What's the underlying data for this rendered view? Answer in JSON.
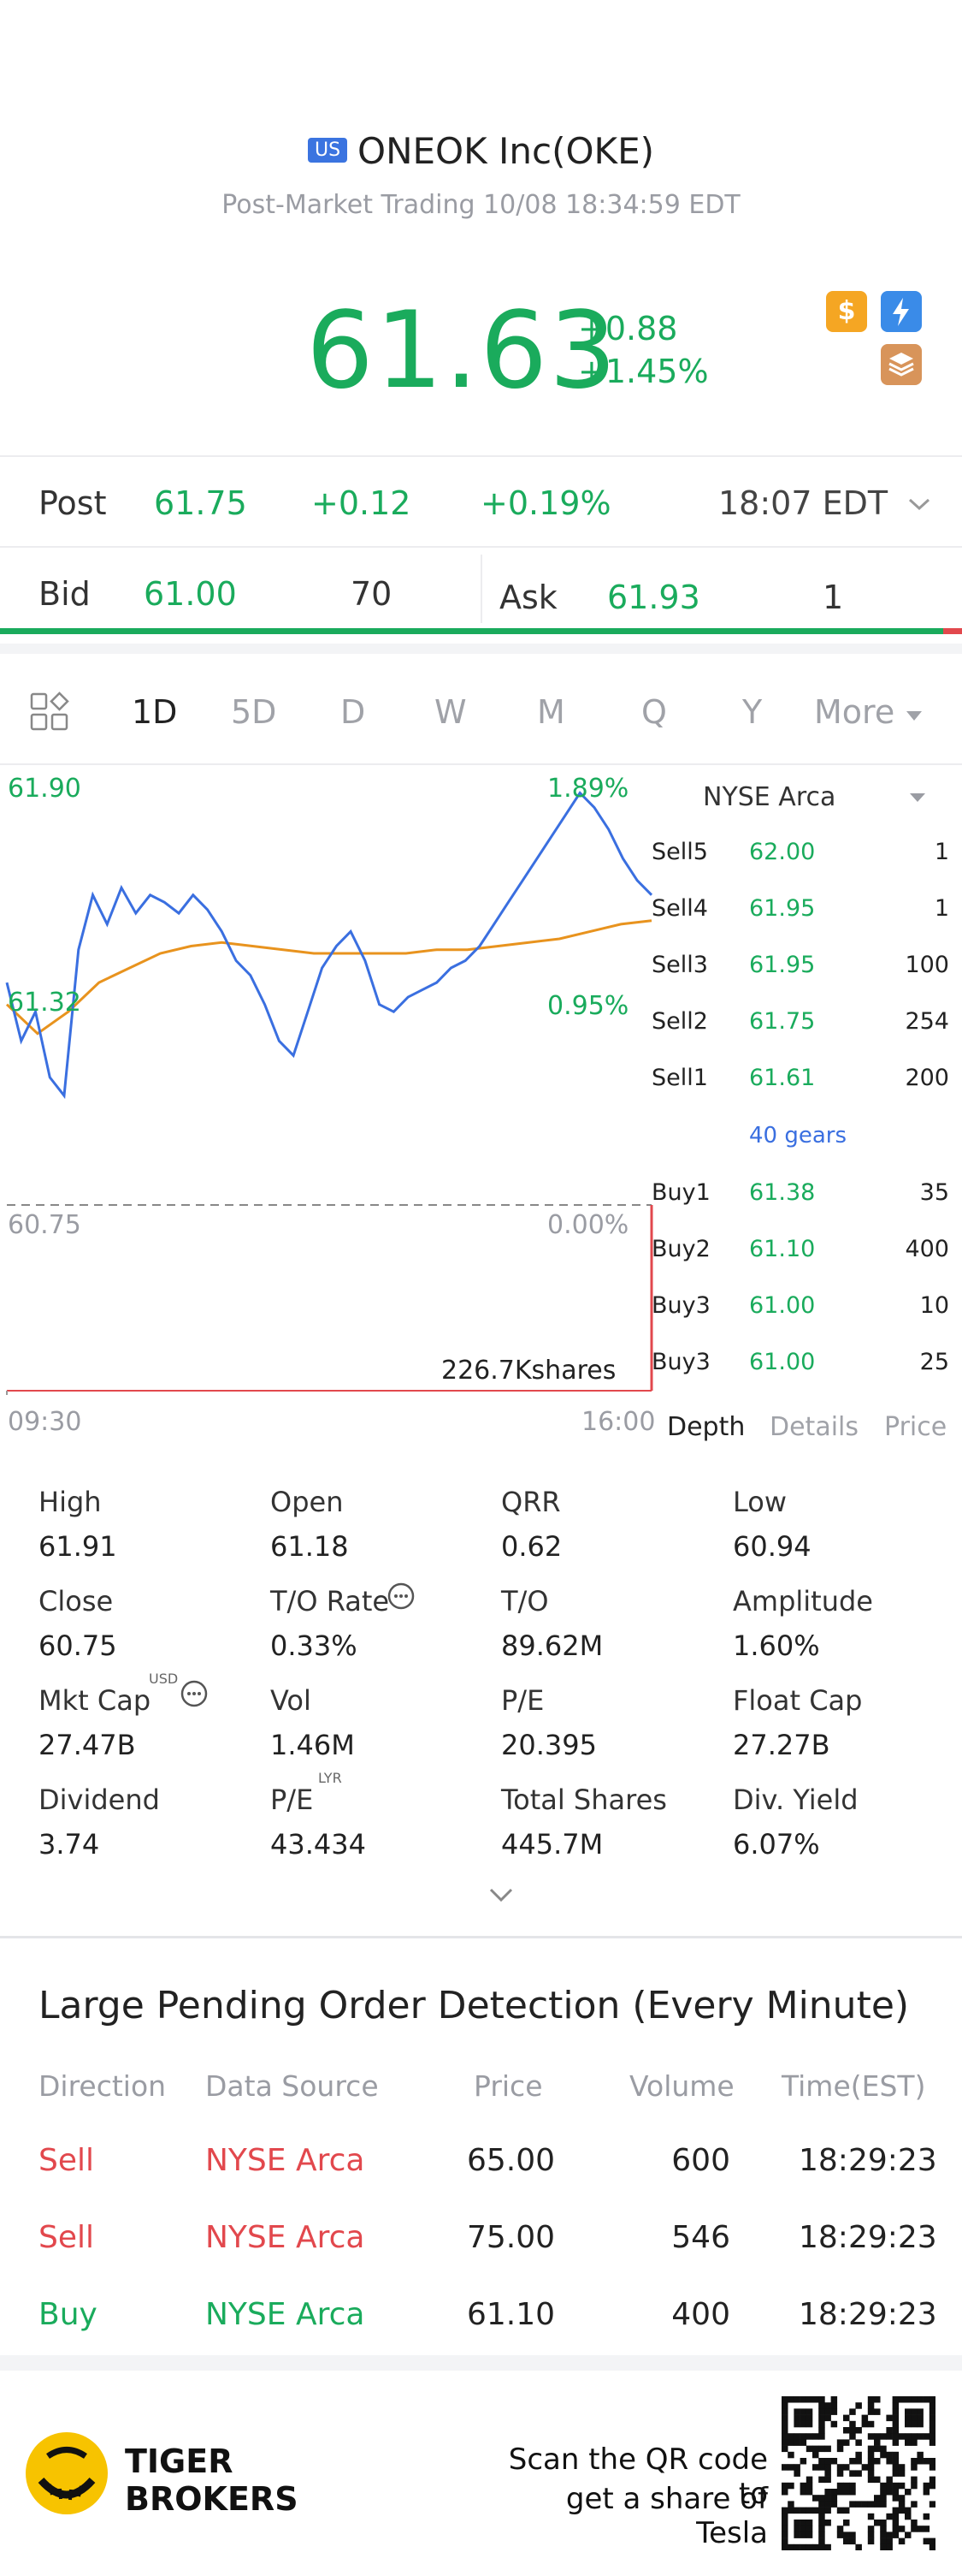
{
  "header": {
    "market_badge": "US",
    "title": "ONEOK Inc(OKE)",
    "subtitle": "Post-Market Trading 10/08 18:34:59 EDT",
    "price": "61.63",
    "change_abs": "+0.88",
    "change_pct": "+1.45%",
    "icons": [
      "dollar-icon",
      "lightning-icon",
      "stack-icon"
    ]
  },
  "post": {
    "label": "Post",
    "price": "61.75",
    "change_abs": "+0.12",
    "change_pct": "+0.19%",
    "time": "18:07 EDT"
  },
  "quote": {
    "bid_label": "Bid",
    "bid_price": "61.00",
    "bid_size": "70",
    "ask_label": "Ask",
    "ask_price": "61.93",
    "ask_size": "1",
    "bid_share": 0.98
  },
  "tabs": [
    "1D",
    "5D",
    "D",
    "W",
    "M",
    "Q",
    "Y",
    "More"
  ],
  "active_tab": "1D",
  "chart": {
    "y_high": "61.90",
    "y_mid": "61.32",
    "y_low": "60.75",
    "pct_high": "1.89%",
    "pct_mid": "0.95%",
    "pct_low": "0.00%",
    "volume": "226.7Kshares",
    "x_start": "09:30",
    "x_end": "16:00"
  },
  "chart_data": {
    "type": "line",
    "x_range": [
      "09:30",
      "16:00"
    ],
    "ylim": [
      60.75,
      61.9
    ],
    "series": [
      {
        "values": [
          61.36,
          61.2,
          61.28,
          61.1,
          61.05,
          61.45,
          61.6,
          61.52,
          61.62,
          61.55,
          61.6,
          61.58,
          61.55,
          61.6,
          61.56,
          61.5,
          61.42,
          61.38,
          61.3,
          61.2,
          61.16,
          61.28,
          61.4,
          61.46,
          61.5,
          61.42,
          61.3,
          61.28,
          61.32,
          61.34,
          61.36,
          61.4,
          61.42,
          61.46,
          61.52,
          61.58,
          61.64,
          61.7,
          61.76,
          61.82,
          61.88,
          61.84,
          61.78,
          61.7,
          61.64,
          61.6
        ]
      },
      {
        "values": [
          61.3,
          61.22,
          61.28,
          61.36,
          61.4,
          61.44,
          61.46,
          61.47,
          61.46,
          61.45,
          61.44,
          61.44,
          61.44,
          61.44,
          61.45,
          61.45,
          61.46,
          61.47,
          61.48,
          61.5,
          61.52,
          61.53
        ]
      }
    ]
  },
  "depth": {
    "exchange": "NYSE Arca",
    "sells": [
      {
        "name": "Sell5",
        "price": "62.00",
        "vol": "1"
      },
      {
        "name": "Sell4",
        "price": "61.95",
        "vol": "1"
      },
      {
        "name": "Sell3",
        "price": "61.95",
        "vol": "100"
      },
      {
        "name": "Sell2",
        "price": "61.75",
        "vol": "254"
      },
      {
        "name": "Sell1",
        "price": "61.61",
        "vol": "200"
      }
    ],
    "gears": "40 gears",
    "buys": [
      {
        "name": "Buy1",
        "price": "61.38",
        "vol": "35"
      },
      {
        "name": "Buy2",
        "price": "61.10",
        "vol": "400"
      },
      {
        "name": "Buy3",
        "price": "61.00",
        "vol": "10"
      },
      {
        "name": "Buy3",
        "price": "61.00",
        "vol": "25"
      }
    ],
    "tabs": [
      "Depth",
      "Details",
      "Price"
    ]
  },
  "stats": [
    {
      "label": "High",
      "value": "61.91"
    },
    {
      "label": "Open",
      "value": "61.18"
    },
    {
      "label": "QRR",
      "value": "0.62"
    },
    {
      "label": "Low",
      "value": "60.94"
    },
    {
      "label": "Close",
      "value": "60.75"
    },
    {
      "label": "T/O Rate",
      "value": "0.33%"
    },
    {
      "label": "T/O",
      "value": "89.62M"
    },
    {
      "label": "Amplitude",
      "value": "1.60%"
    },
    {
      "label": "Mkt Cap",
      "value": "27.47B"
    },
    {
      "label": "Vol",
      "value": "1.46M"
    },
    {
      "label": "P/E",
      "value": "20.395"
    },
    {
      "label": "Float Cap",
      "value": "27.27B"
    },
    {
      "label": "Dividend",
      "value": "3.74"
    },
    {
      "label": "P/E",
      "value": "43.434"
    },
    {
      "label": "Total Shares",
      "value": "445.7M"
    },
    {
      "label": "Div. Yield",
      "value": "6.07%"
    }
  ],
  "stat_superscripts": {
    "usd": "USD",
    "lyr": "LYR"
  },
  "large_pending": {
    "title": "Large Pending Order Detection (Every Minute)",
    "headers": [
      "Direction",
      "Data Source",
      "Price",
      "Volume",
      "Time(EST)"
    ],
    "rows": [
      {
        "direction": "Sell",
        "source": "NYSE Arca",
        "price": "65.00",
        "volume": "600",
        "time": "18:29:23"
      },
      {
        "direction": "Sell",
        "source": "NYSE Arca",
        "price": "75.00",
        "volume": "546",
        "time": "18:29:23"
      },
      {
        "direction": "Buy",
        "source": "NYSE Arca",
        "price": "61.10",
        "volume": "400",
        "time": "18:29:23"
      }
    ]
  },
  "footer": {
    "brand_line1": "TIGER",
    "brand_line2": "BROKERS",
    "cta_line1": "Scan the QR code to",
    "cta_line2": "get a share of Tesla"
  },
  "colors": {
    "green": "#1aab5c",
    "red": "#e2484d",
    "blue_line": "#3a6fe0",
    "orange_line": "#e8931e"
  }
}
